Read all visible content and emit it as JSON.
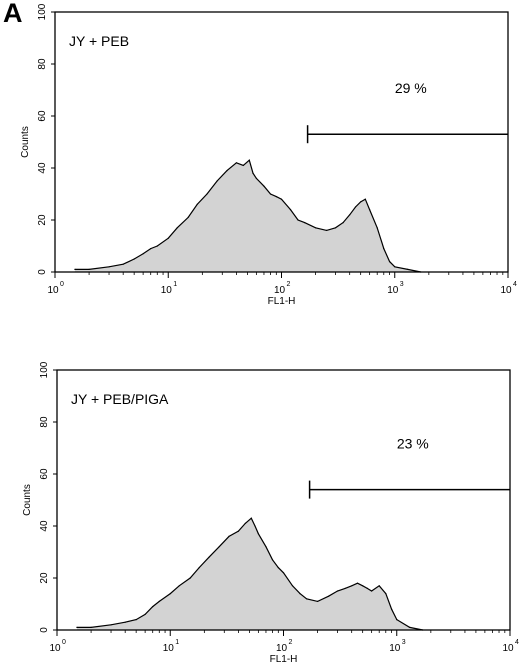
{
  "figure": {
    "panel_letter": "A"
  },
  "chart_data": [
    {
      "type": "area",
      "sample_label": "JY + PEB",
      "gate_label": "29 %",
      "gate_range": [
        170,
        10000
      ],
      "gate_level": 53,
      "xlabel": "FL1-H",
      "ylabel": "Counts",
      "xscale": "log",
      "xlim": [
        1,
        10000
      ],
      "ylim": [
        0,
        100
      ],
      "x_tick_labels": [
        "10",
        "10",
        "10",
        "10",
        "10"
      ],
      "x_tick_exponents": [
        "0",
        "1",
        "2",
        "3",
        "4"
      ],
      "y_tick_labels": [
        "0",
        "20",
        "40",
        "60",
        "80",
        "100"
      ],
      "fill_color": "#d3d3d3",
      "line_color": "#000000",
      "x": [
        1.5,
        2,
        3,
        4,
        5,
        6,
        7,
        8,
        10,
        12,
        15,
        18,
        22,
        27,
        33,
        40,
        46,
        52,
        56,
        60,
        70,
        80,
        90,
        100,
        120,
        140,
        160,
        200,
        250,
        300,
        350,
        400,
        450,
        500,
        550,
        600,
        700,
        800,
        900,
        1000,
        1300,
        1700
      ],
      "y": [
        1,
        1,
        2,
        3,
        5,
        7,
        9,
        10,
        13,
        17,
        21,
        26,
        30,
        35,
        39,
        42,
        41,
        43,
        38,
        36,
        33,
        30,
        29,
        28,
        24,
        20,
        19,
        17,
        16,
        17,
        19,
        22,
        25,
        27,
        28,
        24,
        17,
        9,
        4,
        2,
        1,
        0
      ]
    },
    {
      "type": "area",
      "sample_label": "JY + PEB/PIGA",
      "gate_label": "23 %",
      "gate_range": [
        170,
        10000
      ],
      "gate_level": 54,
      "xlabel": "FL1-H",
      "ylabel": "Counts",
      "xscale": "log",
      "xlim": [
        1,
        10000
      ],
      "ylim": [
        0,
        100
      ],
      "x_tick_labels": [
        "10",
        "10",
        "10",
        "10",
        "10"
      ],
      "x_tick_exponents": [
        "0",
        "1",
        "2",
        "3",
        "4"
      ],
      "y_tick_labels": [
        "0",
        "20",
        "40",
        "60",
        "80",
        "100"
      ],
      "fill_color": "#d3d3d3",
      "line_color": "#000000",
      "x": [
        1.5,
        2,
        3,
        4,
        5,
        6,
        7,
        8,
        10,
        12,
        15,
        18,
        22,
        27,
        33,
        40,
        46,
        52,
        56,
        60,
        70,
        80,
        90,
        100,
        120,
        140,
        160,
        200,
        250,
        300,
        350,
        400,
        450,
        500,
        550,
        600,
        700,
        800,
        900,
        1000,
        1300,
        1700
      ],
      "y": [
        1,
        1,
        2,
        3,
        4,
        6,
        9,
        11,
        14,
        17,
        20,
        24,
        28,
        32,
        36,
        38,
        41,
        43,
        40,
        37,
        32,
        27,
        24,
        22,
        17,
        14,
        12,
        11,
        13,
        15,
        16,
        17,
        18,
        17,
        16,
        15,
        17,
        14,
        8,
        4,
        1,
        0
      ]
    }
  ]
}
